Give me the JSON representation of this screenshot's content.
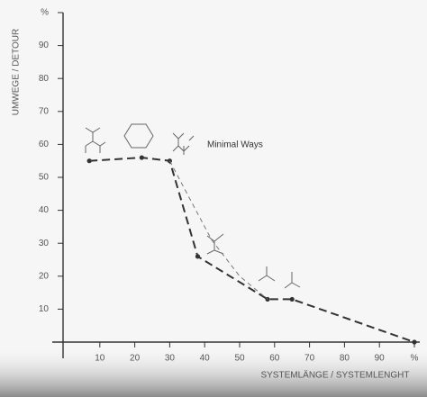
{
  "chart_data": {
    "type": "line",
    "ylabel": "UMWEGE / DETOUR",
    "xlabel": "SYSTEMLÄNGE / SYSTEMLENGHT",
    "annotation": "Minimal Ways",
    "xlim": [
      0,
      100
    ],
    "ylim": [
      0,
      100
    ],
    "xticks": [
      10,
      20,
      30,
      40,
      50,
      60,
      70,
      80,
      90,
      {
        "value": 100,
        "label": "%"
      }
    ],
    "yticks": [
      10,
      20,
      30,
      40,
      50,
      60,
      70,
      80,
      90,
      {
        "value": 100,
        "label": "%"
      }
    ],
    "series": [
      {
        "color": "#333333",
        "x": [
          7,
          22,
          30,
          38,
          58,
          65,
          100
        ],
        "values": [
          55,
          56,
          55,
          26,
          13,
          13,
          0
        ]
      },
      {
        "color": "#777777",
        "x": [
          30,
          42,
          50,
          58
        ],
        "values": [
          55,
          31,
          20,
          13
        ]
      }
    ]
  }
}
